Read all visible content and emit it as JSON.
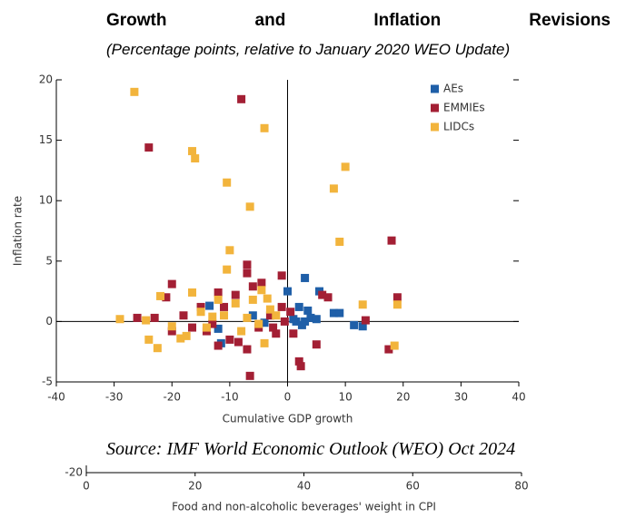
{
  "chart_data": [
    {
      "type": "scatter",
      "title": "Growth and Inflation Revisions",
      "subtitle": "(Percentage points, relative to January 2020 WEO Update)",
      "xlabel": "Cumulative GDP growth",
      "ylabel": "Inflation rate",
      "xlim": [
        -40,
        40
      ],
      "xticks": [
        -40,
        -30,
        -20,
        -10,
        0,
        10,
        20,
        30,
        40
      ],
      "ylim": [
        -5,
        20
      ],
      "yticks": [
        -5,
        0,
        5,
        10,
        15,
        20
      ],
      "legend": "upper right",
      "series": [
        {
          "name": "AEs",
          "color": "#1f5fa8",
          "x": [
            3,
            5.5,
            0,
            2,
            3.5,
            4,
            3,
            1.5,
            2.5,
            5,
            8,
            9,
            11.5,
            13,
            -11.5,
            -12,
            -13.5,
            -6,
            -4,
            1
          ],
          "y": [
            3.6,
            2.5,
            2.5,
            1.2,
            0.9,
            0.3,
            0,
            0,
            -0.3,
            0.2,
            0.7,
            0.7,
            -0.3,
            -0.4,
            -1.8,
            -0.6,
            1.3,
            0.5,
            -0.1,
            0.2
          ]
        },
        {
          "name": "EMMIEs",
          "color": "#a31f34",
          "x": [
            -24,
            -8,
            18,
            -7,
            -7,
            -1,
            -20,
            -21,
            -12,
            -9,
            -4.5,
            -6,
            -15,
            -18,
            -26,
            -23,
            -16.5,
            -14,
            -12,
            -10,
            -8.5,
            -7,
            -6.5,
            -2,
            -0.5,
            1,
            2,
            2.3,
            5,
            6,
            7,
            13.5,
            17.5,
            19,
            -3,
            -5,
            -1,
            -13,
            -11,
            -20,
            -2.5,
            0.5
          ],
          "y": [
            14.4,
            18.4,
            6.7,
            4.7,
            4,
            3.8,
            3.1,
            2,
            2.4,
            2.2,
            3.2,
            2.9,
            1.2,
            0.5,
            0.3,
            0.3,
            -0.5,
            -0.8,
            -2,
            -1.5,
            -1.7,
            -2.3,
            -4.5,
            -1,
            0,
            -1,
            -3.3,
            -3.7,
            -1.9,
            2.2,
            2,
            0.1,
            -2.3,
            2,
            0.5,
            -0.5,
            1.2,
            -0.2,
            1.2,
            -0.8,
            -0.5,
            0.8
          ]
        },
        {
          "name": "LIDCs",
          "color": "#f2b43c",
          "x": [
            -26.5,
            -16.5,
            -16,
            -10.5,
            -4,
            -6.5,
            10,
            8,
            9,
            -10,
            -10.5,
            -4.5,
            -3.5,
            -22,
            -16.5,
            -29,
            -24.5,
            -22.5,
            -24,
            -17.5,
            -20,
            -15,
            -13,
            -11,
            -9,
            -7,
            -5,
            -3,
            -8,
            -2,
            -6,
            -14,
            19,
            18.5,
            13,
            -12,
            -18.5,
            -4
          ],
          "y": [
            19,
            14.1,
            13.5,
            11.5,
            16,
            9.5,
            12.8,
            11,
            6.6,
            5.9,
            4.3,
            2.6,
            1.9,
            2.1,
            2.4,
            0.2,
            0.1,
            -2.2,
            -1.5,
            -1.2,
            -0.4,
            0.8,
            0.4,
            0.5,
            1.5,
            0.3,
            -0.2,
            1,
            -0.8,
            0.5,
            1.8,
            -0.5,
            1.4,
            -2,
            1.4,
            1.8,
            -1.4,
            -1.8
          ]
        }
      ]
    },
    {
      "type": "scatter",
      "xlabel": "Food and non-alcoholic beverages' weight in CPI",
      "xlim": [
        0,
        80
      ],
      "xticks": [
        0,
        20,
        40,
        60,
        80
      ],
      "yticks": [
        -20
      ]
    }
  ],
  "source": "Source: IMF World Economic Outlook (WEO) Oct 2024"
}
